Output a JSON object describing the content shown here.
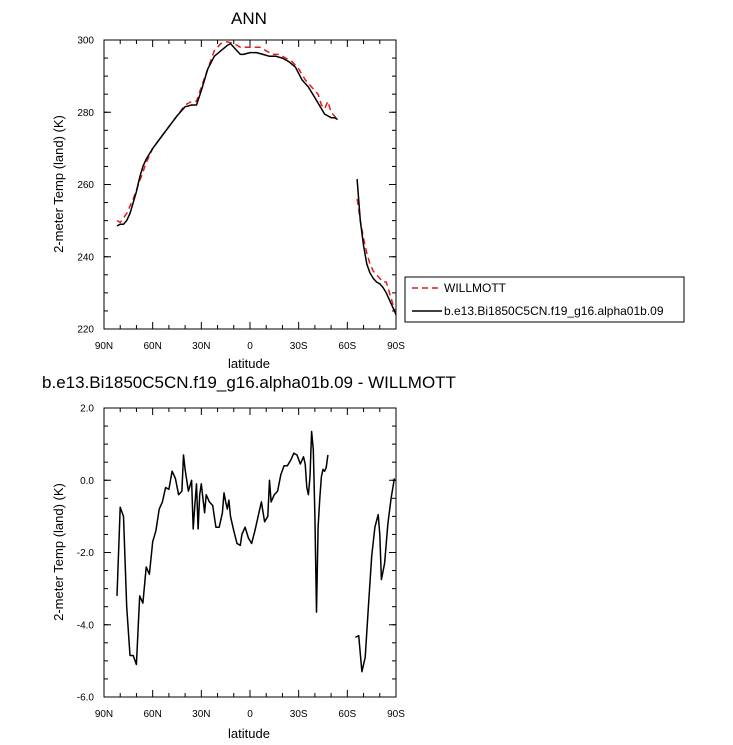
{
  "chart_data": [
    {
      "type": "line",
      "title": "ANN",
      "xlabel": "latitude",
      "ylabel": "2-meter Temp (land) (K)",
      "xlim": [
        90,
        -90
      ],
      "ylim": [
        220,
        300
      ],
      "xticks": [
        90,
        60,
        30,
        0,
        -30,
        -60,
        -90
      ],
      "xtick_labels": [
        "90N",
        "60N",
        "30N",
        "0",
        "30S",
        "60S",
        "90S"
      ],
      "yticks": [
        220,
        240,
        260,
        280,
        300
      ],
      "ytick_labels": [
        "220",
        "240",
        "260",
        "280",
        "300"
      ],
      "legend": {
        "placement": "right"
      },
      "series": [
        {
          "name": "WILLMOTT",
          "color": "#e41a1c",
          "dash": "dashed",
          "segments": [
            [
              [
                82,
                250
              ],
              [
                80,
                249.5
              ],
              [
                76,
                252
              ],
              [
                72,
                256
              ],
              [
                68,
                261
              ],
              [
                64,
                266
              ],
              [
                60,
                270
              ],
              [
                55,
                273
              ],
              [
                50,
                276
              ],
              [
                45,
                279
              ],
              [
                40,
                282
              ],
              [
                36,
                283
              ],
              [
                33,
                283
              ],
              [
                30,
                287
              ],
              [
                26,
                292
              ],
              [
                22,
                297
              ],
              [
                18,
                299
              ],
              [
                14,
                299.5
              ],
              [
                10,
                299
              ],
              [
                6,
                298
              ],
              [
                2,
                298
              ],
              [
                -2,
                298
              ],
              [
                -6,
                298
              ],
              [
                -10,
                297
              ],
              [
                -14,
                296
              ],
              [
                -18,
                296
              ],
              [
                -22,
                295
              ],
              [
                -26,
                294
              ],
              [
                -30,
                292
              ],
              [
                -34,
                289
              ],
              [
                -38,
                287
              ],
              [
                -42,
                285
              ],
              [
                -44,
                282
              ],
              [
                -46,
                281
              ],
              [
                -48,
                283
              ],
              [
                -50,
                280
              ],
              [
                -52,
                279
              ],
              [
                -54,
                278
              ]
            ],
            [
              [
                -66,
                256
              ],
              [
                -68,
                250
              ],
              [
                -70,
                245
              ],
              [
                -72,
                241
              ],
              [
                -74,
                238
              ],
              [
                -76,
                236
              ],
              [
                -78,
                235
              ],
              [
                -80,
                234
              ],
              [
                -82,
                233
              ],
              [
                -84,
                233
              ],
              [
                -86,
                230
              ],
              [
                -88,
                227
              ],
              [
                -90,
                224
              ]
            ]
          ]
        },
        {
          "name": "b.e13.Bi1850C5CN.f19_g16.alpha01b.09",
          "color": "#000000",
          "dash": "solid",
          "segments": [
            [
              [
                82,
                248.5
              ],
              [
                80,
                249
              ],
              [
                78,
                249
              ],
              [
                76,
                250
              ],
              [
                74,
                252
              ],
              [
                72,
                255
              ],
              [
                70,
                258
              ],
              [
                68,
                262
              ],
              [
                66,
                265
              ],
              [
                64,
                267
              ],
              [
                60,
                270
              ],
              [
                55,
                273
              ],
              [
                50,
                276
              ],
              [
                45,
                279
              ],
              [
                40,
                281.5
              ],
              [
                36,
                282
              ],
              [
                33,
                282
              ],
              [
                30,
                286
              ],
              [
                26,
                292
              ],
              [
                22,
                295.5
              ],
              [
                18,
                297
              ],
              [
                14,
                298.5
              ],
              [
                12,
                299
              ],
              [
                10,
                298
              ],
              [
                8,
                297
              ],
              [
                6,
                296
              ],
              [
                4,
                296
              ],
              [
                0,
                296.5
              ],
              [
                -4,
                296.5
              ],
              [
                -8,
                296
              ],
              [
                -12,
                295.5
              ],
              [
                -16,
                295.5
              ],
              [
                -20,
                295
              ],
              [
                -24,
                294
              ],
              [
                -28,
                292.5
              ],
              [
                -32,
                289
              ],
              [
                -36,
                287
              ],
              [
                -40,
                284
              ],
              [
                -44,
                281
              ],
              [
                -46,
                279.5
              ],
              [
                -48,
                279
              ],
              [
                -50,
                278.5
              ],
              [
                -52,
                278.5
              ],
              [
                -54,
                278
              ]
            ],
            [
              [
                -66,
                261.5
              ],
              [
                -68,
                250
              ],
              [
                -70,
                243
              ],
              [
                -72,
                238
              ],
              [
                -74,
                235.5
              ],
              [
                -76,
                234
              ],
              [
                -78,
                233
              ],
              [
                -80,
                232.5
              ],
              [
                -82,
                231.5
              ],
              [
                -84,
                230
              ],
              [
                -86,
                228
              ],
              [
                -88,
                226
              ],
              [
                -90,
                224
              ]
            ]
          ]
        }
      ]
    },
    {
      "type": "line",
      "title": "b.e13.Bi1850C5CN.f19_g16.alpha01b.09 - WILLMOTT",
      "xlabel": "latitude",
      "ylabel": "2-meter Temp (land) (K)",
      "xlim": [
        90,
        -90
      ],
      "ylim": [
        -6,
        2
      ],
      "xticks": [
        90,
        60,
        30,
        0,
        -30,
        -60,
        -90
      ],
      "xtick_labels": [
        "90N",
        "60N",
        "30N",
        "0",
        "30S",
        "60S",
        "90S"
      ],
      "yticks": [
        -6,
        -4,
        -2,
        0,
        2
      ],
      "ytick_labels": [
        "-6.0",
        "-4.0",
        "-2.0",
        "0.0",
        "2.0"
      ],
      "series": [
        {
          "color": "#000000",
          "dash": "solid",
          "segments": [
            [
              [
                82,
                -3.2
              ],
              [
                80,
                -0.75
              ],
              [
                78,
                -1.0
              ],
              [
                76,
                -3.5
              ],
              [
                74,
                -4.85
              ],
              [
                72,
                -4.85
              ],
              [
                70,
                -5.1
              ],
              [
                68,
                -3.2
              ],
              [
                66,
                -3.4
              ],
              [
                64,
                -2.4
              ],
              [
                62,
                -2.6
              ],
              [
                60,
                -1.7
              ],
              [
                58,
                -1.4
              ],
              [
                56,
                -0.8
              ],
              [
                54,
                -0.6
              ],
              [
                52,
                -0.2
              ],
              [
                50,
                -0.25
              ],
              [
                48,
                0.25
              ],
              [
                46,
                0.05
              ],
              [
                44,
                -0.4
              ],
              [
                42,
                -0.3
              ],
              [
                41,
                0.7
              ],
              [
                40,
                0.3
              ],
              [
                38,
                -0.3
              ],
              [
                36,
                0.0
              ],
              [
                35,
                -1.35
              ],
              [
                34,
                -0.7
              ],
              [
                33,
                -0.1
              ],
              [
                32,
                -1.35
              ],
              [
                31,
                -0.4
              ],
              [
                30,
                -0.1
              ],
              [
                28,
                -0.9
              ],
              [
                27,
                -0.4
              ],
              [
                25,
                -0.6
              ],
              [
                23,
                -0.7
              ],
              [
                21,
                -1.3
              ],
              [
                19,
                -1.3
              ],
              [
                17,
                -0.9
              ],
              [
                16,
                -0.35
              ],
              [
                15,
                -0.6
              ],
              [
                14,
                -0.8
              ],
              [
                13,
                -0.55
              ],
              [
                12,
                -1.0
              ],
              [
                10,
                -1.4
              ],
              [
                8,
                -1.75
              ],
              [
                6,
                -1.8
              ],
              [
                5,
                -1.5
              ],
              [
                3,
                -1.3
              ],
              [
                1,
                -1.6
              ],
              [
                -1,
                -1.75
              ],
              [
                -3,
                -1.4
              ],
              [
                -5,
                -1.0
              ],
              [
                -7,
                -0.6
              ],
              [
                -9,
                -1.15
              ],
              [
                -11,
                -1.0
              ],
              [
                -12,
                0.0
              ],
              [
                -13,
                -0.6
              ],
              [
                -15,
                -0.4
              ],
              [
                -17,
                -0.3
              ],
              [
                -19,
                0.15
              ],
              [
                -21,
                0.4
              ],
              [
                -23,
                0.4
              ],
              [
                -25,
                0.55
              ],
              [
                -27,
                0.75
              ],
              [
                -29,
                0.7
              ],
              [
                -31,
                0.45
              ],
              [
                -33,
                0.65
              ],
              [
                -34,
                0.45
              ],
              [
                -35,
                -0.2
              ],
              [
                -36,
                -0.4
              ],
              [
                -37,
                0.1
              ],
              [
                -38,
                1.35
              ],
              [
                -39,
                0.85
              ],
              [
                -40,
                -1.0
              ],
              [
                -41,
                -3.65
              ],
              [
                -42,
                -1.3
              ],
              [
                -43,
                -0.5
              ],
              [
                -44,
                0.1
              ],
              [
                -45,
                0.3
              ],
              [
                -46,
                0.25
              ],
              [
                -47,
                0.35
              ],
              [
                -48,
                0.7
              ]
            ],
            [
              [
                -65,
                -4.35
              ],
              [
                -67,
                -4.3
              ],
              [
                -69,
                -5.3
              ],
              [
                -71,
                -4.9
              ],
              [
                -73,
                -3.5
              ],
              [
                -75,
                -2.1
              ],
              [
                -77,
                -1.3
              ],
              [
                -79,
                -0.95
              ],
              [
                -80,
                -1.5
              ],
              [
                -81,
                -2.75
              ],
              [
                -83,
                -2.3
              ],
              [
                -85,
                -1.2
              ],
              [
                -87,
                -0.5
              ],
              [
                -89,
                0.05
              ]
            ]
          ]
        }
      ]
    }
  ]
}
